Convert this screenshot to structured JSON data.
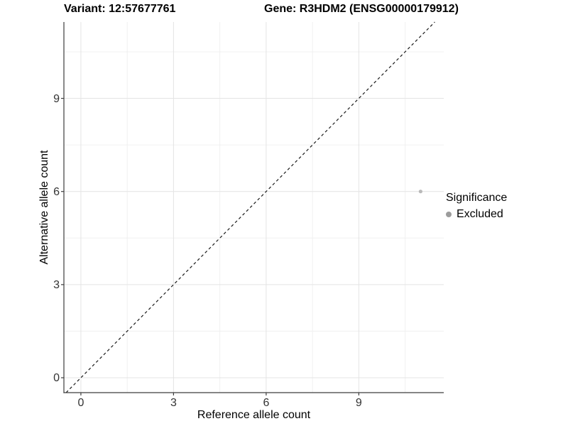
{
  "header": {
    "title_left": "Variant: 12:57677761",
    "title_right": "Gene: R3HDM2 (ENSG00000179912)"
  },
  "axes": {
    "x": {
      "label": "Reference allele count",
      "tick_labels": [
        "0",
        "3",
        "6",
        "9"
      ]
    },
    "y": {
      "label": "Alternative allele count",
      "tick_labels": [
        "0",
        "3",
        "6",
        "9"
      ]
    }
  },
  "legend": {
    "title": "Significance",
    "items": [
      {
        "label": "Excluded",
        "color": "#9c9c9c"
      }
    ]
  },
  "chart_data": {
    "type": "scatter",
    "title": "Variant: 12:57677761 | Gene: R3HDM2 (ENSG00000179912)",
    "xlabel": "Reference allele count",
    "ylabel": "Alternative allele count",
    "xlim": [
      -0.55,
      11.75
    ],
    "ylim": [
      -0.48,
      11.46
    ],
    "x_ticks": [
      0,
      3,
      6,
      9
    ],
    "y_ticks": [
      0,
      3,
      6,
      9
    ],
    "minor_gridlines": [
      1.5,
      4.5,
      7.5,
      10.5
    ],
    "grid": "major+minor",
    "legend_position": "right",
    "series": [
      {
        "name": "Excluded",
        "color": "#b9b9b9",
        "points": [
          {
            "x": 11,
            "y": 6
          }
        ]
      }
    ],
    "reference_line": {
      "slope": 1,
      "intercept": 0,
      "style": "dashed",
      "color": "#1a1a1a"
    }
  },
  "style": {
    "background": "#ffffff",
    "grid_major": "#e4e4e4",
    "grid_minor": "#f0f0f0",
    "axis_line": "#3d3d3d",
    "tick_text": "#333333"
  }
}
